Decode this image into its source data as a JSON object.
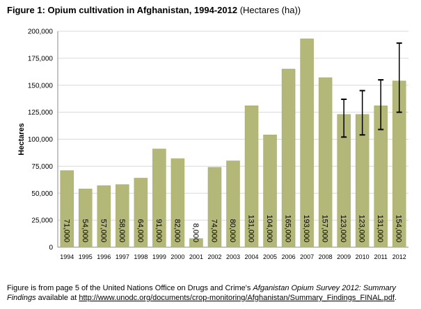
{
  "title": {
    "bold": "Figure 1: Opium cultivation in Afghanistan, 1994-2012",
    "normal": "(Hectares (ha))"
  },
  "chart_data": {
    "type": "bar",
    "categories": [
      "1994",
      "1995",
      "1996",
      "1997",
      "1998",
      "1999",
      "2000",
      "2001",
      "2002",
      "2003",
      "2004",
      "2005",
      "2006",
      "2007",
      "2008",
      "2009",
      "2010",
      "2011",
      "2012"
    ],
    "values": [
      71000,
      54000,
      57000,
      58000,
      64000,
      91000,
      82000,
      8000,
      74000,
      80000,
      131000,
      104000,
      165000,
      193000,
      157000,
      123000,
      123000,
      131000,
      154000
    ],
    "data_labels": [
      "71,000",
      "54,000",
      "57,000",
      "58,000",
      "64,000",
      "91,000",
      "82,000",
      "8,000",
      "74,000",
      "80,000",
      "131,000",
      "104,000",
      "165,000",
      "193,000",
      "157,000",
      "123,000",
      "123,000",
      "131,000",
      "154,000"
    ],
    "error_bars": [
      null,
      null,
      null,
      null,
      null,
      null,
      null,
      null,
      null,
      null,
      null,
      null,
      null,
      null,
      null,
      [
        102000,
        137000
      ],
      [
        104000,
        145000
      ],
      [
        109000,
        155000
      ],
      [
        125000,
        189000
      ]
    ],
    "ylabel": "Hectares",
    "xlabel": "",
    "ylim": [
      0,
      200000
    ],
    "yticks": [
      0,
      25000,
      50000,
      75000,
      100000,
      125000,
      150000,
      175000,
      200000
    ],
    "ytick_labels": [
      "0",
      "25,000",
      "50,000",
      "75,000",
      "100,000",
      "125,000",
      "150,000",
      "175,000",
      "200,000"
    ],
    "grid": true,
    "colors": {
      "bar": "#b3b878",
      "bar_edge": "#a3a868",
      "grid": "#d9d9d9",
      "axis": "#888888",
      "error_bar": "#000000"
    }
  },
  "caption": {
    "line1_prefix": "Figure is from page 5 of the United Nations Office on Drugs and Crime's ",
    "line1_italic": "Afganistan Opium Survey 2012: Summary Findings",
    "line2_mid": " available at ",
    "link": "http://www.unodc.org/documents/crop-monitoring/Afghanistan/Summary_Findings_FINAL.pdf",
    "line2_end": "."
  }
}
